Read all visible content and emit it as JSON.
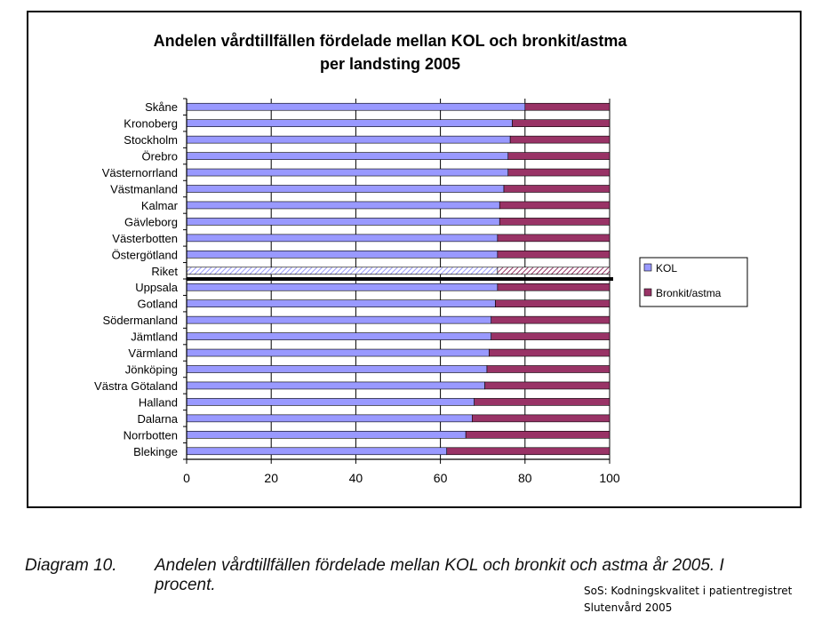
{
  "chart_data": {
    "type": "bar",
    "stacked": true,
    "orientation": "horizontal",
    "title": "Andelen vårdtillfällen fördelade mellan KOL och bronkit/astma",
    "subtitle": "per landsting 2005",
    "categories": [
      "Skåne",
      "Kronoberg",
      "Stockholm",
      "Örebro",
      "Västernorrland",
      "Västmanland",
      "Kalmar",
      "Gävleborg",
      "Västerbotten",
      "Östergötland",
      "Riket",
      "Uppsala",
      "Gotland",
      "Södermanland",
      "Jämtland",
      "Värmland",
      "Jönköping",
      "Västra Götaland",
      "Halland",
      "Dalarna",
      "Norrbotten",
      "Blekinge"
    ],
    "series": [
      {
        "name": "KOL",
        "color": "#9999ff",
        "values": [
          80,
          77,
          76.5,
          76,
          76,
          75,
          74,
          74,
          73.5,
          73.5,
          73.5,
          73.5,
          73,
          72,
          72,
          71.5,
          71,
          70.5,
          68,
          67.5,
          66,
          61.5
        ]
      },
      {
        "name": "Bronkit/astma",
        "color": "#993366",
        "values": [
          20,
          23,
          23.5,
          24,
          24,
          25,
          26,
          26,
          26.5,
          26.5,
          26.5,
          26.5,
          27,
          28,
          28,
          28.5,
          29,
          29.5,
          32,
          32.5,
          34,
          38.5
        ]
      }
    ],
    "highlight_category": "Riket",
    "xlim": [
      0,
      100
    ],
    "xticks": [
      0,
      20,
      40,
      60,
      80,
      100
    ],
    "grid": true,
    "legend_position": "right"
  },
  "caption": {
    "label": "Diagram 10.",
    "text": "Andelen vårdtillfällen fördelade mellan KOL och bronkit och astma år 2005. I procent."
  },
  "source": {
    "line1": "SoS: Kodningskvalitet i patientregistret",
    "line2": "Slutenvård 2005"
  }
}
